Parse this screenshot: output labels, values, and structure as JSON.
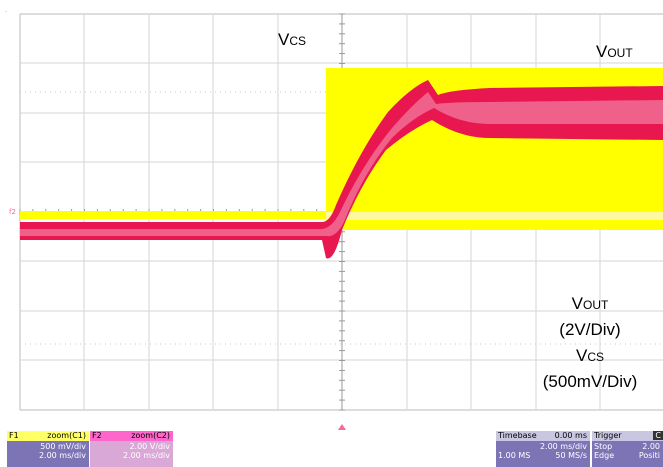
{
  "labels": {
    "vcs_top": {
      "main": "V",
      "sub": "CS"
    },
    "vout_top": {
      "main": "V",
      "sub": "OUT"
    },
    "vout_scale_name": {
      "main": "V",
      "sub": "OUT"
    },
    "vout_scale": "(2V/Div)",
    "vcs_scale_name": {
      "main": "V",
      "sub": "CS"
    },
    "vcs_scale": "(500mV/Div)"
  },
  "markers": {
    "f2_ref": "f2"
  },
  "panels": {
    "f1": {
      "tag": "F1",
      "title": "zoom(C1)",
      "line1": "500 mV/div",
      "line2": "2.00 ms/div"
    },
    "f2": {
      "tag": "F2",
      "title": "zoom(C2)",
      "line1": "2.00 V/div",
      "line2": "2.00 ms/div"
    },
    "timebase": {
      "title": "Timebase",
      "value": "0.00 ms",
      "line1": "2.00 ms/div",
      "line2a": "1.00 MS",
      "line2b": "50 MS/s"
    },
    "trigger": {
      "title": "Trigger",
      "badge": "C",
      "line1a": "Stop",
      "line1b": "2.00",
      "line2a": "Edge",
      "line2b": "Positi"
    }
  },
  "colors": {
    "vcs_trace": "#ffff00",
    "vout_trace": "#e8174f",
    "f1_header": "#ffff66",
    "f2_header": "#ff66cc",
    "panel_body": "#7d74b5",
    "panel_header_gray": "#c9c6e2"
  }
}
